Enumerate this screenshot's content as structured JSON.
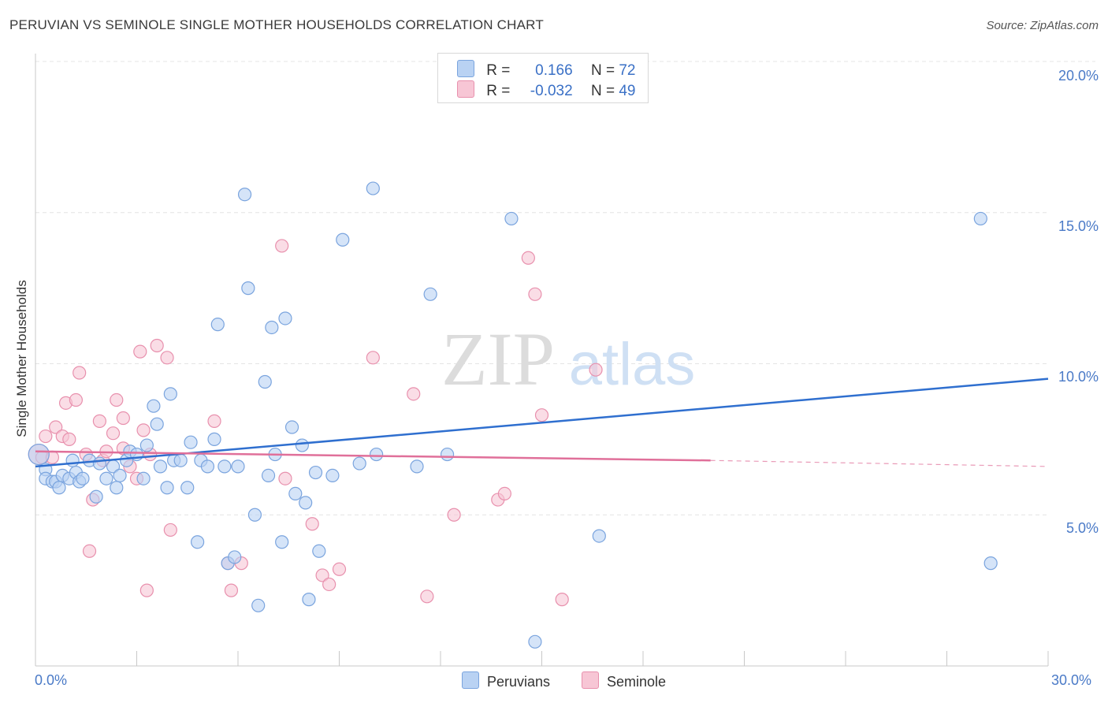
{
  "title": "PERUVIAN VS SEMINOLE SINGLE MOTHER HOUSEHOLDS CORRELATION CHART",
  "source": "Source: ZipAtlas.com",
  "colors": {
    "blue_fill": "#b9d2f3",
    "blue_stroke": "#7aa4de",
    "blue_line": "#2f6fcf",
    "pink_fill": "#f7c6d5",
    "pink_stroke": "#e890ad",
    "pink_line": "#e0709a",
    "tick_text": "#4a7ac7",
    "grid": "#e4e4e4"
  },
  "legend": {
    "rows": [
      {
        "r_label": "R =",
        "r_value": "0.166",
        "n_label": "N =",
        "n_value": "72"
      },
      {
        "r_label": "R =",
        "r_value": "-0.032",
        "n_label": "N =",
        "n_value": "49"
      }
    ]
  },
  "chart_data": {
    "type": "scatter",
    "xlabel": "",
    "ylabel": "Single Mother Households",
    "xlim": [
      0,
      30
    ],
    "ylim": [
      0,
      20
    ],
    "x_tick_labels": [
      "0.0%",
      "30.0%"
    ],
    "y_tick_labels": [
      "5.0%",
      "10.0%",
      "15.0%",
      "20.0%"
    ],
    "y_ticks": [
      5,
      10,
      15,
      20
    ],
    "grid": true,
    "legend_position": "bottom-center",
    "series": [
      {
        "name": "Peruvians",
        "trend": {
          "x": [
            0,
            30
          ],
          "y": [
            6.6,
            9.5
          ]
        },
        "points": [
          [
            0.1,
            7.0
          ],
          [
            0.3,
            6.5
          ],
          [
            0.3,
            6.2
          ],
          [
            0.5,
            6.1
          ],
          [
            0.6,
            6.1
          ],
          [
            0.7,
            5.9
          ],
          [
            0.8,
            6.3
          ],
          [
            1.0,
            6.2
          ],
          [
            1.1,
            6.8
          ],
          [
            1.2,
            6.4
          ],
          [
            1.3,
            6.1
          ],
          [
            1.4,
            6.2
          ],
          [
            1.6,
            6.8
          ],
          [
            1.8,
            5.6
          ],
          [
            1.9,
            6.7
          ],
          [
            2.1,
            6.2
          ],
          [
            2.3,
            6.6
          ],
          [
            2.4,
            5.9
          ],
          [
            2.5,
            6.3
          ],
          [
            2.7,
            6.8
          ],
          [
            2.8,
            7.1
          ],
          [
            3.0,
            7.0
          ],
          [
            3.2,
            6.2
          ],
          [
            3.3,
            7.3
          ],
          [
            3.5,
            8.6
          ],
          [
            3.6,
            8.0
          ],
          [
            3.7,
            6.6
          ],
          [
            3.9,
            5.9
          ],
          [
            4.0,
            9.0
          ],
          [
            4.1,
            6.8
          ],
          [
            4.3,
            6.8
          ],
          [
            4.5,
            5.9
          ],
          [
            4.6,
            7.4
          ],
          [
            4.8,
            4.1
          ],
          [
            4.9,
            6.8
          ],
          [
            5.1,
            6.6
          ],
          [
            5.3,
            7.5
          ],
          [
            5.4,
            11.3
          ],
          [
            5.6,
            6.6
          ],
          [
            5.7,
            3.4
          ],
          [
            5.9,
            3.6
          ],
          [
            6.0,
            6.6
          ],
          [
            6.2,
            15.6
          ],
          [
            6.3,
            12.5
          ],
          [
            6.5,
            5.0
          ],
          [
            6.6,
            2.0
          ],
          [
            6.8,
            9.4
          ],
          [
            6.9,
            6.3
          ],
          [
            7.0,
            11.2
          ],
          [
            7.1,
            7.0
          ],
          [
            7.3,
            4.1
          ],
          [
            7.4,
            11.5
          ],
          [
            7.6,
            7.9
          ],
          [
            7.7,
            5.7
          ],
          [
            7.9,
            7.3
          ],
          [
            8.0,
            5.4
          ],
          [
            8.1,
            2.2
          ],
          [
            8.3,
            6.4
          ],
          [
            8.4,
            3.8
          ],
          [
            8.8,
            6.3
          ],
          [
            9.1,
            14.1
          ],
          [
            9.6,
            6.7
          ],
          [
            10.0,
            15.8
          ],
          [
            10.1,
            7.0
          ],
          [
            11.3,
            6.6
          ],
          [
            11.7,
            12.3
          ],
          [
            12.2,
            7.0
          ],
          [
            14.1,
            14.8
          ],
          [
            14.8,
            0.8
          ],
          [
            16.7,
            4.3
          ],
          [
            28.0,
            14.8
          ],
          [
            28.3,
            3.4
          ]
        ]
      },
      {
        "name": "Seminole",
        "trend": {
          "x": [
            0,
            20
          ],
          "y": [
            7.1,
            6.8
          ],
          "dashed_to": [
            30,
            6.6
          ]
        },
        "points": [
          [
            0.1,
            7.0
          ],
          [
            0.2,
            6.9
          ],
          [
            0.3,
            7.6
          ],
          [
            0.5,
            6.9
          ],
          [
            0.6,
            7.9
          ],
          [
            0.8,
            7.6
          ],
          [
            0.9,
            8.7
          ],
          [
            1.0,
            7.5
          ],
          [
            1.2,
            8.8
          ],
          [
            1.3,
            9.7
          ],
          [
            1.5,
            7.0
          ],
          [
            1.6,
            3.8
          ],
          [
            1.7,
            5.5
          ],
          [
            1.9,
            8.1
          ],
          [
            2.0,
            6.8
          ],
          [
            2.1,
            7.1
          ],
          [
            2.3,
            7.7
          ],
          [
            2.4,
            8.8
          ],
          [
            2.6,
            7.2
          ],
          [
            2.6,
            8.2
          ],
          [
            2.8,
            6.6
          ],
          [
            3.0,
            6.2
          ],
          [
            3.1,
            10.4
          ],
          [
            3.2,
            7.8
          ],
          [
            3.3,
            2.5
          ],
          [
            3.4,
            7.0
          ],
          [
            3.6,
            10.6
          ],
          [
            3.9,
            10.2
          ],
          [
            4.0,
            4.5
          ],
          [
            5.3,
            8.1
          ],
          [
            5.7,
            3.4
          ],
          [
            5.8,
            2.5
          ],
          [
            6.1,
            3.4
          ],
          [
            7.3,
            13.9
          ],
          [
            7.4,
            6.2
          ],
          [
            8.2,
            4.7
          ],
          [
            8.5,
            3.0
          ],
          [
            8.7,
            2.7
          ],
          [
            9.0,
            3.2
          ],
          [
            10.0,
            10.2
          ],
          [
            11.2,
            9.0
          ],
          [
            11.6,
            2.3
          ],
          [
            12.4,
            5.0
          ],
          [
            13.7,
            5.5
          ],
          [
            13.9,
            5.7
          ],
          [
            14.6,
            13.5
          ],
          [
            14.8,
            12.3
          ],
          [
            15.0,
            8.3
          ],
          [
            15.6,
            2.2
          ],
          [
            16.6,
            9.8
          ]
        ]
      }
    ]
  }
}
